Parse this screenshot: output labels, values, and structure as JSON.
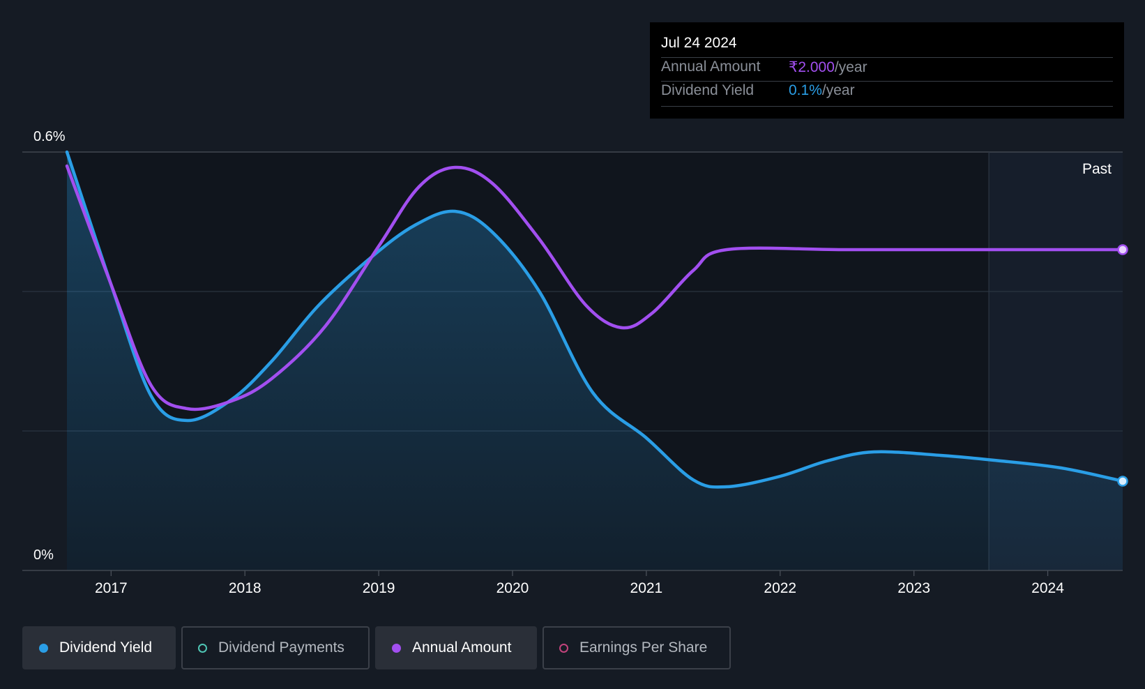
{
  "tooltip": {
    "date": "Jul 24 2024",
    "rows": [
      {
        "label": "Annual Amount",
        "value": "₹2.000",
        "unit": "/year",
        "color": "#a24ff0"
      },
      {
        "label": "Dividend Yield",
        "value": "0.1%",
        "unit": "/year",
        "color": "#2a9ee6"
      }
    ]
  },
  "legend": [
    {
      "label": "Dividend Yield",
      "color": "#2a9ee6",
      "active": true
    },
    {
      "label": "Dividend Payments",
      "color": "#4fc6b5",
      "active": false
    },
    {
      "label": "Annual Amount",
      "color": "#a24ff0",
      "active": true
    },
    {
      "label": "Earnings Per Share",
      "color": "#c2437c",
      "active": false
    }
  ],
  "chart_data": {
    "type": "line",
    "ylim": [
      0,
      0.6
    ],
    "xlim": [
      2016.67,
      2024.56
    ],
    "y_tick_labels": [
      {
        "value": 0.6,
        "label": "0.6%"
      },
      {
        "value": 0,
        "label": "0%"
      }
    ],
    "x_ticks": [
      2017,
      2018,
      2019,
      2020,
      2021,
      2022,
      2023,
      2024
    ],
    "x_tick_labels": [
      "2017",
      "2018",
      "2019",
      "2020",
      "2021",
      "2022",
      "2023",
      "2024"
    ],
    "past_label": "Past",
    "past_start": 2023.56,
    "grid": true,
    "series": [
      {
        "name": "Dividend Yield",
        "color": "#2a9ee6",
        "area": true,
        "points": [
          [
            2016.67,
            0.6
          ],
          [
            2017.0,
            0.41
          ],
          [
            2017.3,
            0.25
          ],
          [
            2017.57,
            0.215
          ],
          [
            2017.9,
            0.245
          ],
          [
            2018.2,
            0.3
          ],
          [
            2018.55,
            0.38
          ],
          [
            2018.95,
            0.45
          ],
          [
            2019.27,
            0.495
          ],
          [
            2019.57,
            0.515
          ],
          [
            2019.85,
            0.485
          ],
          [
            2020.2,
            0.4
          ],
          [
            2020.6,
            0.255
          ],
          [
            2021.0,
            0.19
          ],
          [
            2021.35,
            0.13
          ],
          [
            2021.6,
            0.12
          ],
          [
            2022.0,
            0.135
          ],
          [
            2022.35,
            0.157
          ],
          [
            2022.7,
            0.17
          ],
          [
            2023.2,
            0.165
          ],
          [
            2023.6,
            0.158
          ],
          [
            2024.1,
            0.147
          ],
          [
            2024.56,
            0.128
          ]
        ]
      },
      {
        "name": "Annual Amount",
        "color": "#a24ff0",
        "area": false,
        "points": [
          [
            2016.67,
            0.58
          ],
          [
            2017.0,
            0.41
          ],
          [
            2017.3,
            0.265
          ],
          [
            2017.57,
            0.232
          ],
          [
            2017.9,
            0.243
          ],
          [
            2018.2,
            0.275
          ],
          [
            2018.6,
            0.35
          ],
          [
            2019.0,
            0.465
          ],
          [
            2019.3,
            0.55
          ],
          [
            2019.57,
            0.578
          ],
          [
            2019.85,
            0.555
          ],
          [
            2020.2,
            0.475
          ],
          [
            2020.55,
            0.38
          ],
          [
            2020.82,
            0.348
          ],
          [
            2021.05,
            0.37
          ],
          [
            2021.35,
            0.43
          ],
          [
            2021.6,
            0.46
          ],
          [
            2022.5,
            0.46
          ],
          [
            2023.5,
            0.46
          ],
          [
            2024.56,
            0.46
          ]
        ]
      }
    ]
  }
}
